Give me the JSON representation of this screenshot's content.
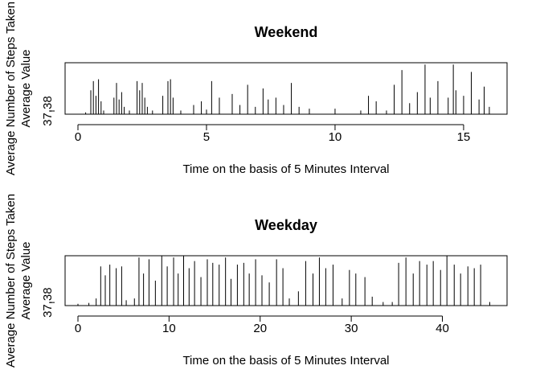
{
  "chart_data": [
    {
      "type": "spike",
      "title": "Weekend",
      "xlabel": "Time on the basis of 5 Minutes Interval",
      "ylabels": [
        "Average Number of Steps Taken",
        "Average Value"
      ],
      "color": "#000000",
      "x": [
        0.0,
        0.3,
        0.5,
        0.6,
        0.7,
        0.8,
        0.9,
        1.0,
        1.4,
        1.5,
        1.6,
        1.7,
        1.8,
        2.0,
        2.3,
        2.4,
        2.5,
        2.6,
        2.7,
        2.9,
        3.3,
        3.5,
        3.6,
        3.7,
        4.0,
        4.5,
        4.8,
        5.0,
        5.2,
        5.5,
        6.0,
        6.3,
        6.6,
        6.9,
        7.2,
        7.4,
        7.7,
        8.0,
        8.3,
        8.6,
        9.0,
        10.0,
        11.0,
        11.3,
        11.6,
        12.0,
        12.3,
        12.6,
        12.9,
        13.2,
        13.5,
        13.7,
        14.0,
        14.4,
        14.6,
        14.7,
        15.0,
        15.3,
        15.6,
        15.8,
        16.0
      ],
      "values": [
        22,
        30,
        150,
        200,
        120,
        210,
        90,
        40,
        110,
        190,
        100,
        140,
        60,
        40,
        200,
        150,
        190,
        110,
        60,
        40,
        120,
        200,
        210,
        110,
        40,
        70,
        90,
        45,
        200,
        110,
        130,
        70,
        180,
        60,
        160,
        100,
        110,
        70,
        190,
        60,
        50,
        50,
        40,
        120,
        90,
        40,
        180,
        260,
        80,
        140,
        290,
        110,
        200,
        110,
        290,
        150,
        120,
        250,
        100,
        170,
        60
      ],
      "xlim": [
        -0.5,
        16.69
      ],
      "xticks": [
        0,
        5,
        10,
        15
      ],
      "ylim": [
        20,
        300
      ],
      "yticks": [
        37.38
      ]
    },
    {
      "type": "spike",
      "title": "Weekday",
      "xlabel": "Time on the basis of 5 Minutes Interval",
      "ylabels": [
        "Average Number of Steps Taken",
        "Average Value"
      ],
      "color": "#000000",
      "x": [
        0.0,
        1.2,
        2.0,
        2.5,
        3.0,
        3.5,
        4.2,
        4.8,
        5.3,
        6.2,
        6.7,
        7.2,
        7.8,
        8.5,
        9.2,
        9.8,
        10.5,
        11.0,
        11.6,
        12.2,
        12.8,
        13.5,
        14.2,
        14.8,
        15.5,
        16.2,
        16.8,
        17.5,
        18.2,
        18.8,
        19.5,
        20.2,
        21.0,
        21.8,
        22.5,
        23.2,
        24.2,
        25.0,
        25.8,
        26.5,
        27.2,
        28.0,
        29.0,
        29.8,
        30.5,
        31.5,
        32.3,
        33.5,
        34.5,
        35.2,
        36.0,
        36.8,
        37.5,
        38.3,
        39.0,
        39.8,
        40.5,
        41.3,
        42.0,
        42.8,
        43.5,
        44.2,
        45.2
      ],
      "values": [
        30,
        35,
        60,
        240,
        190,
        250,
        230,
        240,
        50,
        60,
        290,
        200,
        280,
        160,
        300,
        240,
        290,
        200,
        300,
        230,
        270,
        180,
        280,
        260,
        250,
        290,
        170,
        250,
        260,
        200,
        280,
        190,
        150,
        280,
        230,
        60,
        100,
        270,
        200,
        290,
        230,
        250,
        60,
        220,
        200,
        180,
        70,
        40,
        40,
        260,
        290,
        200,
        270,
        250,
        270,
        220,
        300,
        250,
        200,
        240,
        230,
        250,
        40
      ],
      "xlim": [
        -1.41,
        47.1
      ],
      "xticks": [
        0,
        10,
        20,
        30,
        40
      ],
      "ylim": [
        20,
        300
      ],
      "yticks": [
        37.38
      ]
    }
  ]
}
